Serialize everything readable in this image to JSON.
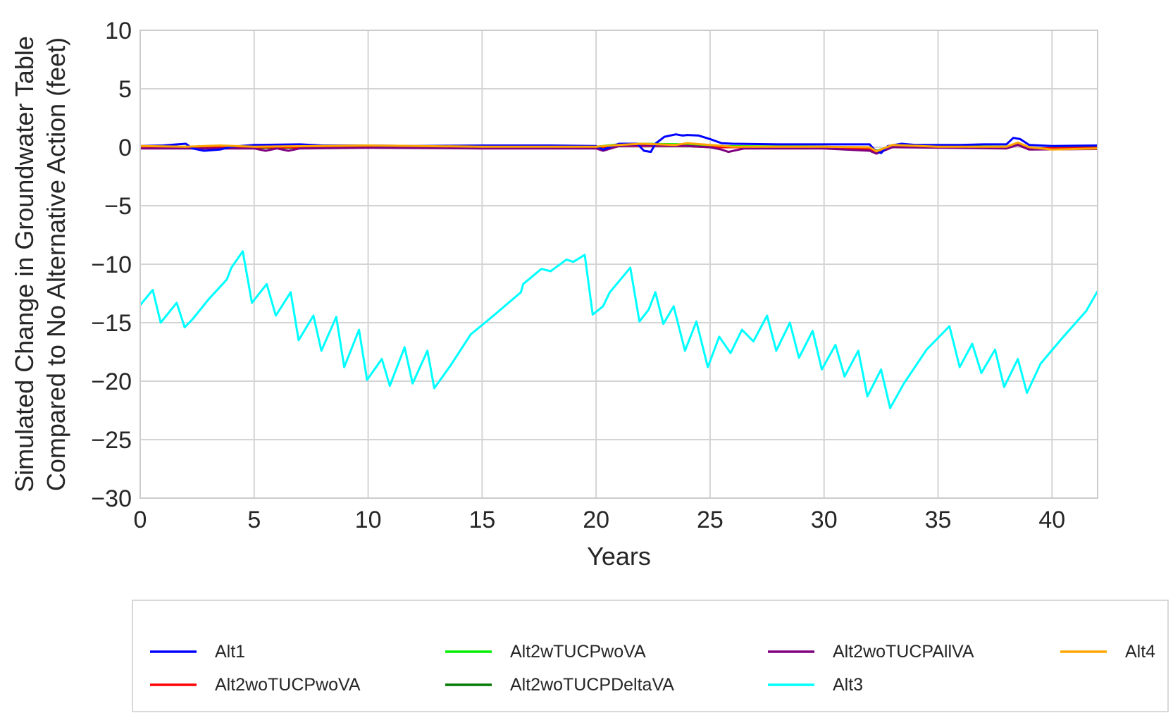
{
  "chart_data": {
    "type": "line",
    "xlabel": "Years",
    "ylabel_line1": "Simulated Change in Groundwater Table",
    "ylabel_line2": "Compared to No Alternative Action (feet)",
    "xlim": [
      0,
      42
    ],
    "ylim": [
      -30,
      10
    ],
    "x_ticks": [
      0,
      5,
      10,
      15,
      20,
      25,
      30,
      35,
      40
    ],
    "y_ticks": [
      10,
      5,
      0,
      -5,
      -10,
      -15,
      -20,
      -25,
      -30
    ],
    "y_tick_labels": [
      "10",
      "5",
      "0",
      "−5",
      "−10",
      "−15",
      "−20",
      "−25",
      "−30"
    ],
    "grid": true,
    "legend_position": "bottom",
    "series": [
      {
        "name": "Alt1",
        "color": "#0000ff",
        "points": [
          [
            0,
            0.1
          ],
          [
            1,
            0.15
          ],
          [
            2,
            0.3
          ],
          [
            2.3,
            -0.1
          ],
          [
            2.8,
            -0.3
          ],
          [
            3.5,
            -0.2
          ],
          [
            4,
            0.05
          ],
          [
            5,
            0.2
          ],
          [
            7,
            0.25
          ],
          [
            8,
            0.15
          ],
          [
            10,
            0.15
          ],
          [
            12,
            0.1
          ],
          [
            15,
            0.15
          ],
          [
            18,
            0.15
          ],
          [
            20,
            0.1
          ],
          [
            20.3,
            -0.2
          ],
          [
            21,
            0.3
          ],
          [
            21.8,
            0.3
          ],
          [
            22.1,
            -0.3
          ],
          [
            22.4,
            -0.4
          ],
          [
            22.6,
            0.3
          ],
          [
            23,
            0.9
          ],
          [
            23.5,
            1.1
          ],
          [
            23.8,
            1.0
          ],
          [
            24,
            1.05
          ],
          [
            24.5,
            1.0
          ],
          [
            25,
            0.7
          ],
          [
            25.5,
            0.35
          ],
          [
            26,
            0.3
          ],
          [
            28,
            0.25
          ],
          [
            30,
            0.25
          ],
          [
            32,
            0.25
          ],
          [
            32.2,
            -0.2
          ],
          [
            32.5,
            -0.5
          ],
          [
            32.8,
            0.1
          ],
          [
            33.4,
            0.3
          ],
          [
            34,
            0.2
          ],
          [
            36,
            0.2
          ],
          [
            37,
            0.25
          ],
          [
            38,
            0.25
          ],
          [
            38.3,
            0.8
          ],
          [
            38.6,
            0.7
          ],
          [
            39,
            0.2
          ],
          [
            40,
            0.1
          ],
          [
            42,
            0.15
          ]
        ]
      },
      {
        "name": "Alt2woTUCPwoVA",
        "color": "#ff0000",
        "points": [
          [
            0,
            0
          ],
          [
            5,
            0
          ],
          [
            10,
            0
          ],
          [
            15,
            0
          ],
          [
            20,
            0
          ],
          [
            21,
            0.1
          ],
          [
            22,
            0.1
          ],
          [
            24,
            0.1
          ],
          [
            25,
            0
          ],
          [
            30,
            0
          ],
          [
            32,
            -0.2
          ],
          [
            32.3,
            -0.4
          ],
          [
            33,
            0
          ],
          [
            38,
            0
          ],
          [
            38.5,
            0.3
          ],
          [
            39,
            -0.1
          ],
          [
            42,
            -0.05
          ]
        ]
      },
      {
        "name": "Alt2wTUCPwoVA",
        "color": "#00ee00",
        "points": [
          [
            0,
            0.05
          ],
          [
            5,
            0.05
          ],
          [
            10,
            0.05
          ],
          [
            15,
            0.05
          ],
          [
            20,
            0.05
          ],
          [
            21,
            0.25
          ],
          [
            22,
            0.3
          ],
          [
            24,
            0.25
          ],
          [
            25,
            0.1
          ],
          [
            30,
            0.05
          ],
          [
            32,
            -0.1
          ],
          [
            32.3,
            -0.3
          ],
          [
            33,
            0.1
          ],
          [
            38,
            0.05
          ],
          [
            38.5,
            0.3
          ],
          [
            39,
            -0.1
          ],
          [
            42,
            0
          ]
        ]
      },
      {
        "name": "Alt2woTUCPDeltaVA",
        "color": "#007a00",
        "points": [
          [
            0,
            -0.05
          ],
          [
            5,
            -0.05
          ],
          [
            10,
            0
          ],
          [
            15,
            -0.05
          ],
          [
            20,
            -0.05
          ],
          [
            21,
            0.15
          ],
          [
            22,
            0.2
          ],
          [
            24,
            0.15
          ],
          [
            25,
            0.05
          ],
          [
            30,
            -0.05
          ],
          [
            32,
            -0.15
          ],
          [
            32.3,
            -0.35
          ],
          [
            33,
            0.05
          ],
          [
            38,
            0
          ],
          [
            38.5,
            0.25
          ],
          [
            39,
            -0.1
          ],
          [
            42,
            -0.1
          ]
        ]
      },
      {
        "name": "Alt2woTUCPAllVA",
        "color": "#800080",
        "points": [
          [
            0,
            -0.1
          ],
          [
            5,
            -0.1
          ],
          [
            5.5,
            -0.3
          ],
          [
            6,
            -0.1
          ],
          [
            6.5,
            -0.3
          ],
          [
            7,
            -0.1
          ],
          [
            10,
            -0.05
          ],
          [
            15,
            -0.1
          ],
          [
            20,
            -0.1
          ],
          [
            20.3,
            -0.3
          ],
          [
            21,
            0.1
          ],
          [
            22,
            0.15
          ],
          [
            24,
            0.1
          ],
          [
            25,
            0
          ],
          [
            25.5,
            -0.2
          ],
          [
            25.8,
            -0.4
          ],
          [
            26.5,
            -0.1
          ],
          [
            30,
            -0.1
          ],
          [
            32,
            -0.3
          ],
          [
            32.3,
            -0.55
          ],
          [
            33,
            0
          ],
          [
            38,
            -0.1
          ],
          [
            38.5,
            0.2
          ],
          [
            39,
            -0.2
          ],
          [
            42,
            -0.15
          ]
        ]
      },
      {
        "name": "Alt3",
        "color": "#00ffff",
        "points": [
          [
            0,
            -13.5
          ],
          [
            0.55,
            -12.2
          ],
          [
            0.9,
            -15.0
          ],
          [
            1.6,
            -13.3
          ],
          [
            1.95,
            -15.4
          ],
          [
            2.3,
            -14.7
          ],
          [
            3.0,
            -13.0
          ],
          [
            3.8,
            -11.3
          ],
          [
            4.0,
            -10.3
          ],
          [
            4.5,
            -8.9
          ],
          [
            4.9,
            -13.3
          ],
          [
            5.55,
            -11.7
          ],
          [
            5.95,
            -14.4
          ],
          [
            6.6,
            -12.4
          ],
          [
            6.95,
            -16.5
          ],
          [
            7.6,
            -14.4
          ],
          [
            7.95,
            -17.4
          ],
          [
            8.6,
            -14.5
          ],
          [
            8.95,
            -18.8
          ],
          [
            9.6,
            -15.6
          ],
          [
            9.95,
            -19.9
          ],
          [
            10.6,
            -18.1
          ],
          [
            10.95,
            -20.4
          ],
          [
            11.6,
            -17.1
          ],
          [
            11.95,
            -20.2
          ],
          [
            12.6,
            -17.4
          ],
          [
            12.9,
            -20.6
          ],
          [
            13.6,
            -18.7
          ],
          [
            14.5,
            -16.0
          ],
          [
            15.5,
            -14.4
          ],
          [
            16.7,
            -12.4
          ],
          [
            16.8,
            -11.7
          ],
          [
            17.6,
            -10.4
          ],
          [
            18.0,
            -10.6
          ],
          [
            18.7,
            -9.6
          ],
          [
            19.0,
            -9.8
          ],
          [
            19.5,
            -9.2
          ],
          [
            19.85,
            -14.3
          ],
          [
            20.3,
            -13.6
          ],
          [
            20.6,
            -12.4
          ],
          [
            21.5,
            -10.3
          ],
          [
            21.9,
            -14.9
          ],
          [
            22.3,
            -13.9
          ],
          [
            22.6,
            -12.4
          ],
          [
            22.95,
            -15.1
          ],
          [
            23.4,
            -13.6
          ],
          [
            23.9,
            -17.4
          ],
          [
            24.4,
            -14.9
          ],
          [
            24.9,
            -18.8
          ],
          [
            25.4,
            -16.2
          ],
          [
            25.9,
            -17.6
          ],
          [
            26.4,
            -15.6
          ],
          [
            26.9,
            -16.6
          ],
          [
            27.5,
            -14.4
          ],
          [
            27.9,
            -17.4
          ],
          [
            28.5,
            -15.0
          ],
          [
            28.9,
            -18.0
          ],
          [
            29.5,
            -15.7
          ],
          [
            29.9,
            -19.0
          ],
          [
            30.5,
            -16.9
          ],
          [
            30.9,
            -19.6
          ],
          [
            31.5,
            -17.4
          ],
          [
            31.9,
            -21.3
          ],
          [
            32.5,
            -19.0
          ],
          [
            32.9,
            -22.3
          ],
          [
            33.5,
            -20.2
          ],
          [
            34.5,
            -17.3
          ],
          [
            35.5,
            -15.3
          ],
          [
            35.95,
            -18.8
          ],
          [
            36.5,
            -16.8
          ],
          [
            36.9,
            -19.3
          ],
          [
            37.5,
            -17.3
          ],
          [
            37.9,
            -20.5
          ],
          [
            38.5,
            -18.1
          ],
          [
            38.9,
            -21.0
          ],
          [
            39.5,
            -18.5
          ],
          [
            40.5,
            -16.2
          ],
          [
            41.5,
            -14.0
          ],
          [
            42,
            -12.3
          ]
        ]
      },
      {
        "name": "Alt4",
        "color": "#ffa500",
        "points": [
          [
            0,
            0.1
          ],
          [
            2,
            0.05
          ],
          [
            3.5,
            0.15
          ],
          [
            5,
            0.05
          ],
          [
            10,
            0.15
          ],
          [
            15,
            0.05
          ],
          [
            20,
            0.05
          ],
          [
            21,
            0.2
          ],
          [
            22,
            0.3
          ],
          [
            23.5,
            0.2
          ],
          [
            24,
            0.35
          ],
          [
            25,
            0.2
          ],
          [
            26,
            0.05
          ],
          [
            30,
            0.05
          ],
          [
            32,
            0
          ],
          [
            32.3,
            -0.35
          ],
          [
            33,
            0.2
          ],
          [
            35,
            0.05
          ],
          [
            38,
            0.05
          ],
          [
            38.5,
            0.4
          ],
          [
            39,
            0
          ],
          [
            40,
            -0.2
          ],
          [
            42,
            -0.1
          ]
        ]
      }
    ]
  }
}
